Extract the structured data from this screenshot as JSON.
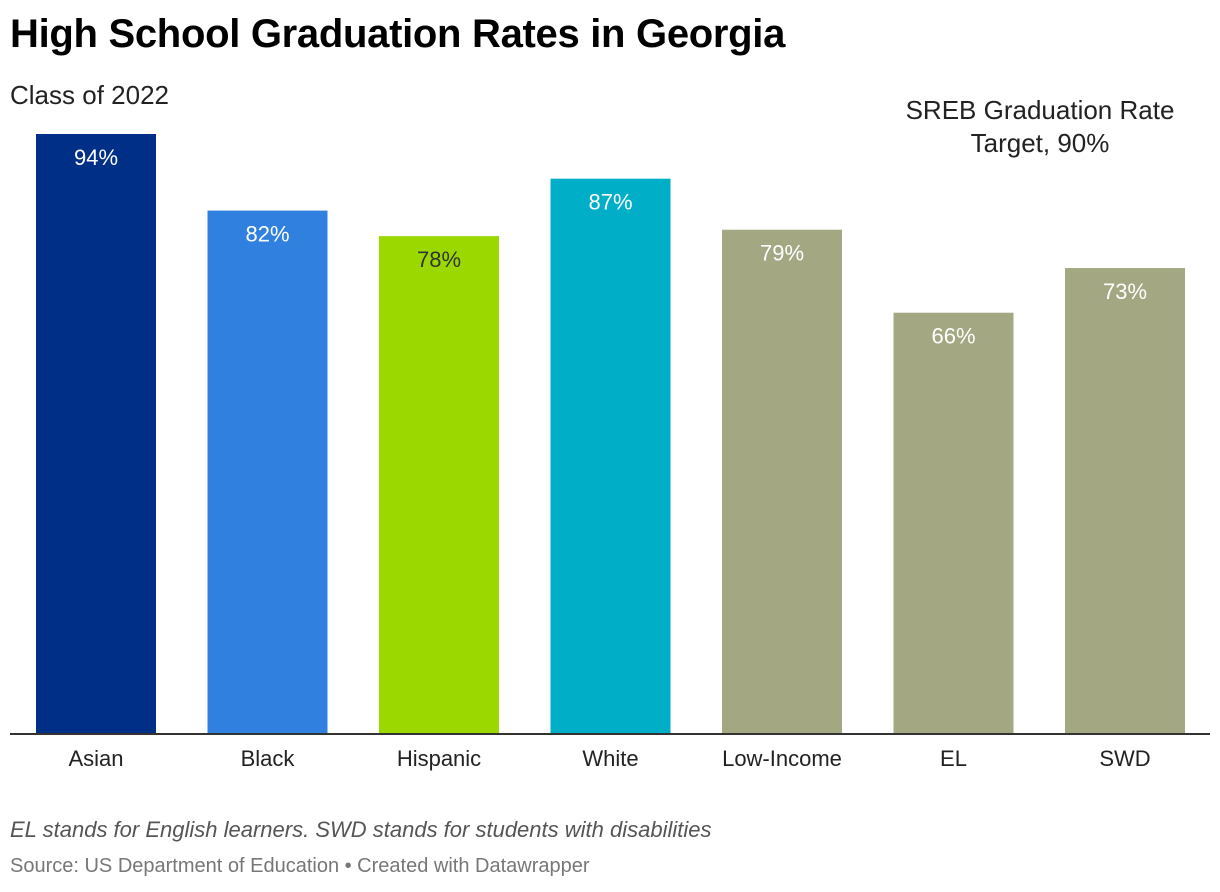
{
  "title": "High School Graduation Rates in Georgia",
  "subtitle": "Class of 2022",
  "annotation": "SREB Graduation Rate Target, 90%",
  "note": "EL stands for English learners. SWD stands for students with disabilities",
  "source": "Source: US Department of Education • Created with Datawrapper",
  "chart_data": {
    "type": "bar",
    "categories": [
      "Asian",
      "Black",
      "Hispanic",
      "White",
      "Low-Income",
      "EL",
      "SWD"
    ],
    "values": [
      94,
      82,
      78,
      87,
      79,
      66,
      73
    ],
    "value_labels": [
      "94%",
      "82%",
      "78%",
      "87%",
      "79%",
      "66%",
      "73%"
    ],
    "colors": [
      "#002f87",
      "#3080e0",
      "#9ad800",
      "#00aec8",
      "#a3a883",
      "#a3a883",
      "#a3a883"
    ],
    "label_colors": [
      "#ffffff",
      "#ffffff",
      "#333333",
      "#ffffff",
      "#ffffff",
      "#ffffff",
      "#ffffff"
    ],
    "ylim": [
      0,
      94
    ],
    "grid": false,
    "legend": "none",
    "unit": "%"
  }
}
